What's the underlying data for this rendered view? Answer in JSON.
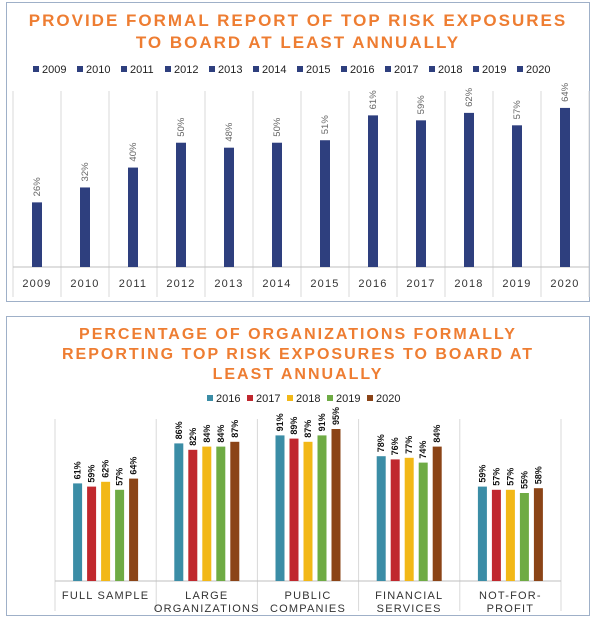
{
  "chart_data": [
    {
      "type": "bar",
      "title_lines": [
        "PROVIDE FORMAL REPORT OF TOP RISK EXPOSURES",
        "TO BOARD AT LEAST ANNUALLY"
      ],
      "legend": [
        "2009",
        "2010",
        "2011",
        "2012",
        "2013",
        "2014",
        "2015",
        "2016",
        "2017",
        "2018",
        "2019",
        "2020"
      ],
      "categories": [
        "2009",
        "2010",
        "2011",
        "2012",
        "2013",
        "2014",
        "2015",
        "2016",
        "2017",
        "2018",
        "2019",
        "2020"
      ],
      "values": [
        26,
        32,
        40,
        50,
        48,
        50,
        51,
        61,
        59,
        62,
        57,
        64
      ],
      "labels": [
        "26%",
        "32%",
        "40%",
        "50%",
        "48%",
        "50%",
        "51%",
        "61%",
        "59%",
        "62%",
        "57%",
        "64%"
      ],
      "ylim": [
        0,
        70
      ],
      "grid": "vertical",
      "color": "#2e3f7e"
    },
    {
      "type": "bar",
      "title_lines": [
        "PERCENTAGE OF ORGANIZATIONS FORMALLY",
        "REPORTING TOP RISK EXPOSURES TO BOARD AT",
        "LEAST ANNUALLY"
      ],
      "categories": [
        [
          "FULL SAMPLE"
        ],
        [
          "LARGE",
          "ORGANIZATIONS"
        ],
        [
          "PUBLIC",
          "COMPANIES"
        ],
        [
          "FINANCIAL",
          "SERVICES"
        ],
        [
          "NOT-FOR-",
          "PROFIT"
        ]
      ],
      "series": [
        {
          "name": "2016",
          "color": "#3b8da6",
          "values": [
            61,
            86,
            91,
            78,
            59
          ],
          "labels": [
            "61%",
            "86%",
            "91%",
            "78%",
            "59%"
          ]
        },
        {
          "name": "2017",
          "color": "#c0282e",
          "values": [
            59,
            82,
            89,
            76,
            57
          ],
          "labels": [
            "59%",
            "82%",
            "89%",
            "76%",
            "57%"
          ]
        },
        {
          "name": "2018",
          "color": "#f2b817",
          "values": [
            62,
            84,
            87,
            77,
            57
          ],
          "labels": [
            "62%",
            "84%",
            "87%",
            "77%",
            "57%"
          ]
        },
        {
          "name": "2019",
          "color": "#6fab44",
          "values": [
            57,
            84,
            91,
            74,
            55
          ],
          "labels": [
            "57%",
            "84%",
            "91%",
            "74%",
            "55%"
          ]
        },
        {
          "name": "2020",
          "color": "#8b4417",
          "values": [
            64,
            87,
            95,
            84,
            58
          ],
          "labels": [
            "64%",
            "87%",
            "95%",
            "84%",
            "58%"
          ]
        }
      ],
      "ylim": [
        0,
        115
      ],
      "grid": "vertical"
    }
  ]
}
